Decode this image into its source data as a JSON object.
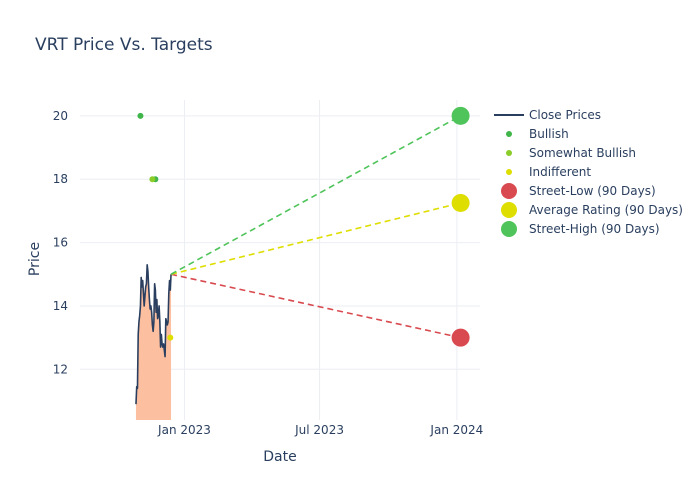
{
  "chart_data": {
    "type": "line",
    "title": "VRT Price Vs. Targets",
    "xlabel": "Date",
    "ylabel": "Price",
    "x_range": [
      "2022-08-14",
      "2024-02-01"
    ],
    "y_range": [
      10.4,
      20.5
    ],
    "x_ticks": [
      {
        "value": "2023-01-01",
        "label": "Jan 2023"
      },
      {
        "value": "2023-07-01",
        "label": "Jul 2023"
      },
      {
        "value": "2024-01-01",
        "label": "Jan 2024"
      }
    ],
    "y_ticks": [
      12,
      14,
      16,
      18,
      20
    ],
    "grid": true,
    "legend_position": "right",
    "colors": {
      "close": "#2a3f5f",
      "fill": "#fcbf9f",
      "bullish": "#3fb54a",
      "somewhat_bullish": "#8acc28",
      "indifferent": "#dede00",
      "street_low": "#d94a50",
      "average": "#dede00",
      "street_high": "#4fc45a"
    },
    "series": [
      {
        "name": "Close Prices",
        "kind": "line",
        "points": [
          [
            "2022-10-28",
            10.9
          ],
          [
            "2022-10-29",
            11.45
          ],
          [
            "2022-10-30",
            11.4
          ],
          [
            "2022-10-31",
            13.1
          ],
          [
            "2022-11-01",
            13.5
          ],
          [
            "2022-11-02",
            13.7
          ],
          [
            "2022-11-03",
            14.0
          ],
          [
            "2022-11-04",
            14.9
          ],
          [
            "2022-11-05",
            14.6
          ],
          [
            "2022-11-06",
            14.8
          ],
          [
            "2022-11-07",
            14.4
          ],
          [
            "2022-11-08",
            14.0
          ],
          [
            "2022-11-09",
            14.3
          ],
          [
            "2022-11-10",
            14.6
          ],
          [
            "2022-11-11",
            14.7
          ],
          [
            "2022-11-12",
            15.3
          ],
          [
            "2022-11-13",
            15.1
          ],
          [
            "2022-11-14",
            14.6
          ],
          [
            "2022-11-15",
            14.2
          ],
          [
            "2022-11-16",
            13.9
          ],
          [
            "2022-11-17",
            14.0
          ],
          [
            "2022-11-18",
            13.8
          ],
          [
            "2022-11-19",
            13.4
          ],
          [
            "2022-11-20",
            13.2
          ],
          [
            "2022-11-21",
            13.5
          ],
          [
            "2022-11-22",
            14.7
          ],
          [
            "2022-11-23",
            14.5
          ],
          [
            "2022-11-24",
            13.8
          ],
          [
            "2022-11-25",
            14.2
          ],
          [
            "2022-11-26",
            13.6
          ],
          [
            "2022-11-27",
            13.7
          ],
          [
            "2022-11-28",
            14.0
          ],
          [
            "2022-11-29",
            13.5
          ],
          [
            "2022-11-30",
            12.7
          ],
          [
            "2022-12-01",
            13.1
          ],
          [
            "2022-12-02",
            12.8
          ],
          [
            "2022-12-03",
            12.7
          ],
          [
            "2022-12-04",
            12.8
          ],
          [
            "2022-12-05",
            12.6
          ],
          [
            "2022-12-06",
            12.4
          ],
          [
            "2022-12-07",
            13.6
          ],
          [
            "2022-12-08",
            13.5
          ],
          [
            "2022-12-09",
            13.4
          ],
          [
            "2022-12-10",
            13.5
          ],
          [
            "2022-12-11",
            14.4
          ],
          [
            "2022-12-12",
            14.8
          ],
          [
            "2022-12-13",
            14.5
          ],
          [
            "2022-12-14",
            15.0
          ]
        ]
      },
      {
        "name": "Bullish",
        "kind": "markers",
        "points": [
          [
            "2022-11-03",
            20.0
          ],
          [
            "2022-11-23",
            18.0
          ]
        ]
      },
      {
        "name": "Somewhat Bullish",
        "kind": "markers",
        "points": [
          [
            "2022-11-19",
            18.0
          ]
        ]
      },
      {
        "name": "Indifferent",
        "kind": "markers",
        "points": [
          [
            "2022-12-13",
            13.0
          ]
        ]
      },
      {
        "name": "Street-Low (90 Days)",
        "kind": "target",
        "from": [
          "2022-12-14",
          15.0
        ],
        "to": [
          "2024-01-06",
          13.0
        ]
      },
      {
        "name": "Average Rating (90 Days)",
        "kind": "target",
        "from": [
          "2022-12-14",
          15.0
        ],
        "to": [
          "2024-01-06",
          17.25
        ]
      },
      {
        "name": "Street-High (90 Days)",
        "kind": "target",
        "from": [
          "2022-12-14",
          15.0
        ],
        "to": [
          "2024-01-06",
          20.0
        ]
      }
    ]
  }
}
